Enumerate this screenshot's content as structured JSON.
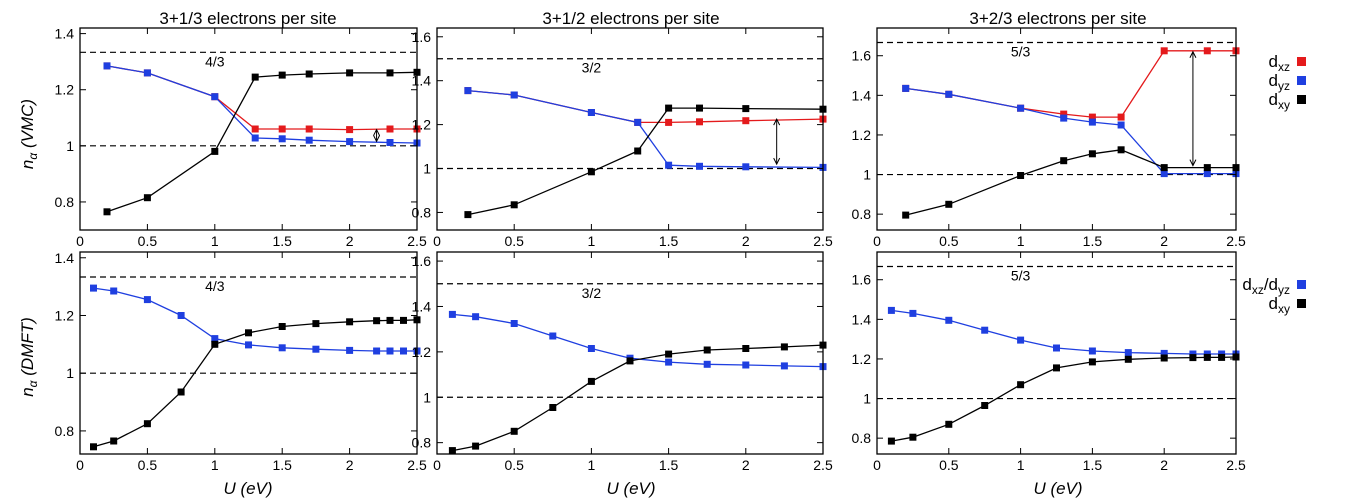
{
  "figure": {
    "column_titles": [
      "3+1/3 electrons per site",
      "3+1/2 electrons per site",
      "3+2/3 electrons per site"
    ],
    "row_ylabels": [
      {
        "symbol": "n",
        "subscript": "α",
        "method": " (VMC)"
      },
      {
        "symbol": "n",
        "subscript": "α",
        "method": " (DMFT)"
      }
    ],
    "xlabel": "U (eV)",
    "legend_top": [
      {
        "main": "d",
        "sub": "xz",
        "color": "#e41a1c"
      },
      {
        "main": "d",
        "sub": "yz",
        "color": "#1f3fe0"
      },
      {
        "main": "d",
        "sub": "xy",
        "color": "#000000"
      }
    ],
    "legend_bottom": [
      {
        "main": "d",
        "sub": "xz",
        "sep": "/d",
        "sub2": "yz",
        "color": "#1f3fe0"
      },
      {
        "main": "d",
        "sub": "xy",
        "color": "#000000"
      }
    ]
  },
  "chart_data": [
    {
      "type": "line",
      "row": "VMC",
      "col": 0,
      "annotation": "4/3",
      "ref_lines": [
        1.3333,
        1.0
      ],
      "xlim": [
        0,
        2.5
      ],
      "ylim": [
        0.7,
        1.42
      ],
      "xticks": [
        "0",
        "0.5",
        "1",
        "1.5",
        "2",
        "2.5"
      ],
      "xtick_values": [
        0,
        0.5,
        1,
        1.5,
        2,
        2.5
      ],
      "yticks": [
        "0.8",
        "1",
        "1.2",
        "1.4"
      ],
      "ytick_values": [
        0.8,
        1.0,
        1.2,
        1.4
      ],
      "x": [
        0.2,
        0.5,
        1.0,
        1.3,
        1.5,
        1.7,
        2.0,
        2.3,
        2.5
      ],
      "series": [
        {
          "name": "dxz",
          "color": "#e41a1c",
          "values": [
            1.285,
            1.26,
            1.175,
            1.06,
            1.06,
            1.06,
            1.058,
            1.06,
            1.06
          ]
        },
        {
          "name": "dyz",
          "color": "#1f3fe0",
          "values": [
            1.285,
            1.26,
            1.175,
            1.028,
            1.025,
            1.02,
            1.015,
            1.012,
            1.01
          ]
        },
        {
          "name": "dxy",
          "color": "#000000",
          "values": [
            0.765,
            0.815,
            0.98,
            1.245,
            1.252,
            1.256,
            1.26,
            1.26,
            1.262
          ]
        }
      ],
      "arrow": {
        "x": 2.2,
        "y1": 1.016,
        "y2": 1.058
      }
    },
    {
      "type": "line",
      "row": "VMC",
      "col": 1,
      "annotation": "3/2",
      "ref_lines": [
        1.5,
        1.0
      ],
      "xlim": [
        0,
        2.5
      ],
      "ylim": [
        0.72,
        1.64
      ],
      "xticks": [
        "0",
        "0.5",
        "1",
        "1.5",
        "2",
        "2.5"
      ],
      "xtick_values": [
        0,
        0.5,
        1,
        1.5,
        2,
        2.5
      ],
      "yticks": [
        "0.8",
        "1",
        "1.2",
        "1.4",
        "1.6"
      ],
      "ytick_values": [
        0.8,
        1.0,
        1.2,
        1.4,
        1.6
      ],
      "x": [
        0.2,
        0.5,
        1.0,
        1.3,
        1.5,
        1.7,
        2.0,
        2.5
      ],
      "series": [
        {
          "name": "dxz",
          "color": "#e41a1c",
          "values": [
            1.355,
            1.335,
            1.255,
            1.21,
            1.21,
            1.213,
            1.218,
            1.225
          ]
        },
        {
          "name": "dyz",
          "color": "#1f3fe0",
          "values": [
            1.355,
            1.335,
            1.255,
            1.21,
            1.015,
            1.01,
            1.008,
            1.005
          ]
        },
        {
          "name": "dxy",
          "color": "#000000",
          "values": [
            0.79,
            0.835,
            0.985,
            1.08,
            1.275,
            1.275,
            1.273,
            1.27
          ]
        }
      ],
      "arrow": {
        "x": 2.2,
        "y1": 1.02,
        "y2": 1.225
      }
    },
    {
      "type": "line",
      "row": "VMC",
      "col": 2,
      "annotation": "5/3",
      "ref_lines": [
        1.6667,
        1.0
      ],
      "xlim": [
        0,
        2.5
      ],
      "ylim": [
        0.72,
        1.74
      ],
      "xticks": [
        "0",
        "0.5",
        "1",
        "1.5",
        "2",
        "2.5"
      ],
      "xtick_values": [
        0,
        0.5,
        1,
        1.5,
        2,
        2.5
      ],
      "yticks": [
        "0.8",
        "1",
        "1.2",
        "1.4",
        "1.6"
      ],
      "ytick_values": [
        0.8,
        1.0,
        1.2,
        1.4,
        1.6
      ],
      "x": [
        0.2,
        0.5,
        1.0,
        1.3,
        1.5,
        1.7,
        2.0,
        2.3,
        2.5
      ],
      "series": [
        {
          "name": "dxz",
          "color": "#e41a1c",
          "values": [
            1.435,
            1.405,
            1.335,
            1.305,
            1.29,
            1.29,
            1.625,
            1.625,
            1.625
          ]
        },
        {
          "name": "dyz",
          "color": "#1f3fe0",
          "values": [
            1.435,
            1.405,
            1.335,
            1.285,
            1.265,
            1.25,
            1.005,
            1.005,
            1.005
          ]
        },
        {
          "name": "dxy",
          "color": "#000000",
          "values": [
            0.795,
            0.85,
            0.995,
            1.07,
            1.105,
            1.125,
            1.035,
            1.035,
            1.035
          ]
        }
      ],
      "arrow": {
        "x": 2.2,
        "y1": 1.045,
        "y2": 1.62
      }
    },
    {
      "type": "line",
      "row": "DMFT",
      "col": 0,
      "annotation": "4/3",
      "ref_lines": [
        1.3333,
        1.0
      ],
      "xlim": [
        0,
        2.5
      ],
      "ylim": [
        0.72,
        1.42
      ],
      "xticks": [
        "0",
        "0.5",
        "1",
        "1.5",
        "2",
        "2.5"
      ],
      "xtick_values": [
        0,
        0.5,
        1,
        1.5,
        2,
        2.5
      ],
      "yticks": [
        "0.8",
        "1",
        "1.2",
        "1.4"
      ],
      "ytick_values": [
        0.8,
        1.0,
        1.2,
        1.4
      ],
      "x": [
        0.1,
        0.25,
        0.5,
        0.75,
        1.0,
        1.25,
        1.5,
        1.75,
        2.0,
        2.2,
        2.3,
        2.4,
        2.5
      ],
      "series": [
        {
          "name": "dxz/dyz",
          "color": "#1f3fe0",
          "values": [
            1.295,
            1.285,
            1.255,
            1.2,
            1.12,
            1.098,
            1.088,
            1.083,
            1.079,
            1.077,
            1.077,
            1.077,
            1.077
          ]
        },
        {
          "name": "dxy",
          "color": "#000000",
          "values": [
            0.745,
            0.765,
            0.825,
            0.935,
            1.1,
            1.14,
            1.162,
            1.172,
            1.178,
            1.182,
            1.183,
            1.183,
            1.185
          ]
        }
      ]
    },
    {
      "type": "line",
      "row": "DMFT",
      "col": 1,
      "annotation": "3/2",
      "ref_lines": [
        1.5,
        1.0
      ],
      "xlim": [
        0,
        2.5
      ],
      "ylim": [
        0.75,
        1.64
      ],
      "xticks": [
        "0",
        "0.5",
        "1",
        "1.5",
        "2",
        "2.5"
      ],
      "xtick_values": [
        0,
        0.5,
        1,
        1.5,
        2,
        2.5
      ],
      "yticks": [
        "0.8",
        "1",
        "1.2",
        "1.4",
        "1.6"
      ],
      "ytick_values": [
        0.8,
        1.0,
        1.2,
        1.4,
        1.6
      ],
      "x": [
        0.1,
        0.25,
        0.5,
        0.75,
        1.0,
        1.25,
        1.5,
        1.75,
        2.0,
        2.25,
        2.5
      ],
      "series": [
        {
          "name": "dxz/dyz",
          "color": "#1f3fe0",
          "values": [
            1.365,
            1.355,
            1.325,
            1.27,
            1.215,
            1.172,
            1.155,
            1.145,
            1.142,
            1.138,
            1.135
          ]
        },
        {
          "name": "dxy",
          "color": "#000000",
          "values": [
            0.765,
            0.785,
            0.85,
            0.955,
            1.07,
            1.16,
            1.19,
            1.208,
            1.215,
            1.222,
            1.23
          ]
        }
      ]
    },
    {
      "type": "line",
      "row": "DMFT",
      "col": 2,
      "annotation": "5/3",
      "ref_lines": [
        1.6667,
        1.0
      ],
      "xlim": [
        0,
        2.5
      ],
      "ylim": [
        0.72,
        1.74
      ],
      "xticks": [
        "0",
        "0.5",
        "1",
        "1.5",
        "2",
        "2.5"
      ],
      "xtick_values": [
        0,
        0.5,
        1,
        1.5,
        2,
        2.5
      ],
      "yticks": [
        "0.8",
        "1",
        "1.2",
        "1.4",
        "1.6"
      ],
      "ytick_values": [
        0.8,
        1.0,
        1.2,
        1.4,
        1.6
      ],
      "x": [
        0.1,
        0.25,
        0.5,
        0.75,
        1.0,
        1.25,
        1.5,
        1.75,
        2.0,
        2.2,
        2.3,
        2.4,
        2.5
      ],
      "series": [
        {
          "name": "dxz/dyz",
          "color": "#1f3fe0",
          "values": [
            1.445,
            1.43,
            1.395,
            1.345,
            1.295,
            1.255,
            1.24,
            1.232,
            1.228,
            1.225,
            1.225,
            1.225,
            1.225
          ]
        },
        {
          "name": "dxy",
          "color": "#000000",
          "values": [
            0.785,
            0.805,
            0.87,
            0.965,
            1.07,
            1.155,
            1.185,
            1.198,
            1.205,
            1.207,
            1.208,
            1.208,
            1.21
          ]
        }
      ]
    }
  ]
}
